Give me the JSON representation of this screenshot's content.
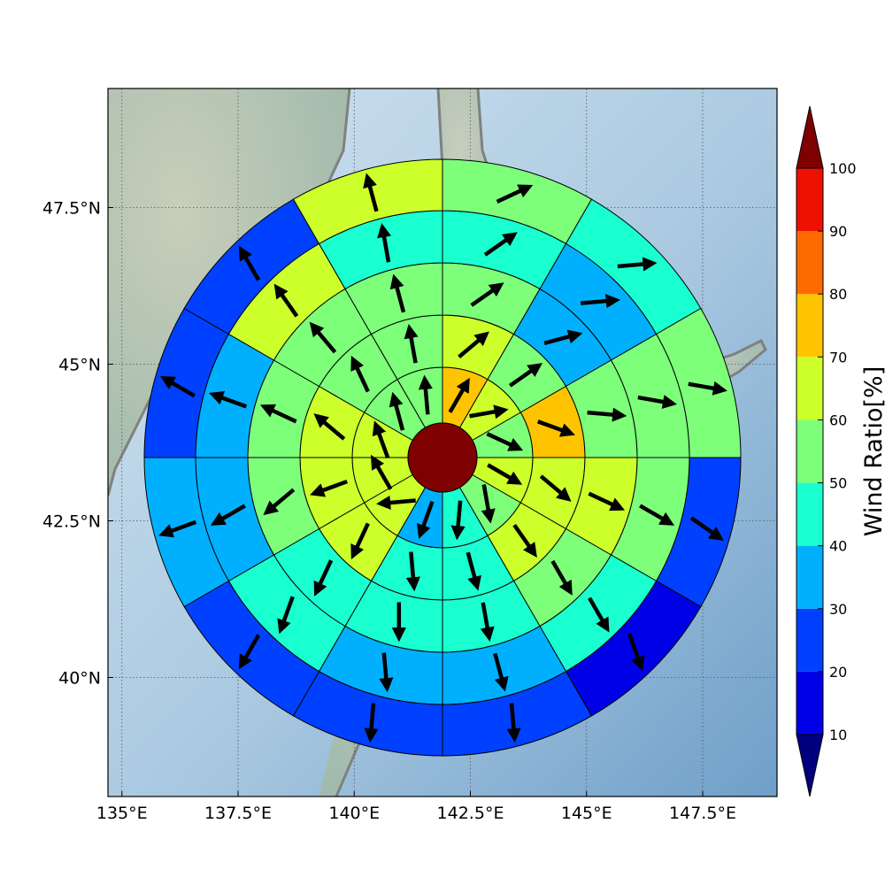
{
  "map": {
    "lon_range": [
      134.7,
      149.1
    ],
    "lat_range": [
      38.1,
      49.4
    ],
    "lon_ticks": [
      {
        "value": 135,
        "label": "135°E"
      },
      {
        "value": 137.5,
        "label": "137.5°E"
      },
      {
        "value": 140,
        "label": "140°E"
      },
      {
        "value": 142.5,
        "label": "142.5°E"
      },
      {
        "value": 145,
        "label": "145°E"
      },
      {
        "value": 147.5,
        "label": "147.5°E"
      }
    ],
    "lat_ticks": [
      {
        "value": 47.5,
        "label": "47.5°N"
      },
      {
        "value": 45,
        "label": "45°N"
      },
      {
        "value": 42.5,
        "label": "42.5°N"
      },
      {
        "value": 40,
        "label": "40°N"
      }
    ],
    "center": {
      "lon": 142.0,
      "lat": 43.8
    },
    "grid": true
  },
  "colorbar": {
    "label": "Wind Ratio[%]",
    "ticks": [
      "10",
      "20",
      "30",
      "40",
      "50",
      "60",
      "70",
      "80",
      "90",
      "100"
    ],
    "colors": {
      "under": "#00007f",
      "bins": [
        "#0000e6",
        "#0040ff",
        "#00b0ff",
        "#1affd0",
        "#7dff7a",
        "#cdff2a",
        "#ffc400",
        "#ff6a00",
        "#ee1000"
      ],
      "over": "#7f0000"
    },
    "extend": "both"
  },
  "chart_data": {
    "type": "polar-grid",
    "rings": 5,
    "sectors_per_ring": 12,
    "sector_order": "clockwise from north",
    "center_value": 100,
    "ring_values": [
      [
        70,
        60,
        55,
        60,
        55,
        45,
        35,
        60,
        60,
        60,
        55,
        55
      ],
      [
        60,
        55,
        75,
        60,
        60,
        40,
        45,
        60,
        60,
        60,
        55,
        55
      ],
      [
        55,
        35,
        55,
        60,
        55,
        40,
        45,
        40,
        55,
        55,
        55,
        55
      ],
      [
        45,
        30,
        55,
        55,
        40,
        30,
        35,
        40,
        30,
        35,
        60,
        45
      ],
      [
        55,
        45,
        55,
        25,
        15,
        25,
        25,
        20,
        30,
        25,
        20,
        60
      ]
    ],
    "ring_values_note": "",
    "arrow_angles_deg": [
      [
        30,
        80,
        115,
        120,
        170,
        185,
        200,
        265,
        330,
        340,
        345,
        355
      ],
      [
        50,
        55,
        110,
        130,
        145,
        165,
        175,
        205,
        250,
        310,
        335,
        350
      ],
      [
        55,
        75,
        95,
        115,
        150,
        170,
        180,
        205,
        230,
        295,
        320,
        345
      ],
      [
        55,
        85,
        100,
        120,
        150,
        165,
        175,
        200,
        240,
        290,
        325,
        350
      ],
      [
        65,
        85,
        100,
        125,
        160,
        175,
        185,
        210,
        250,
        300,
        330,
        345
      ],
      [
        60,
        88,
        95,
        125,
        160,
        175,
        190,
        235,
        260,
        300,
        330,
        345
      ]
    ]
  }
}
